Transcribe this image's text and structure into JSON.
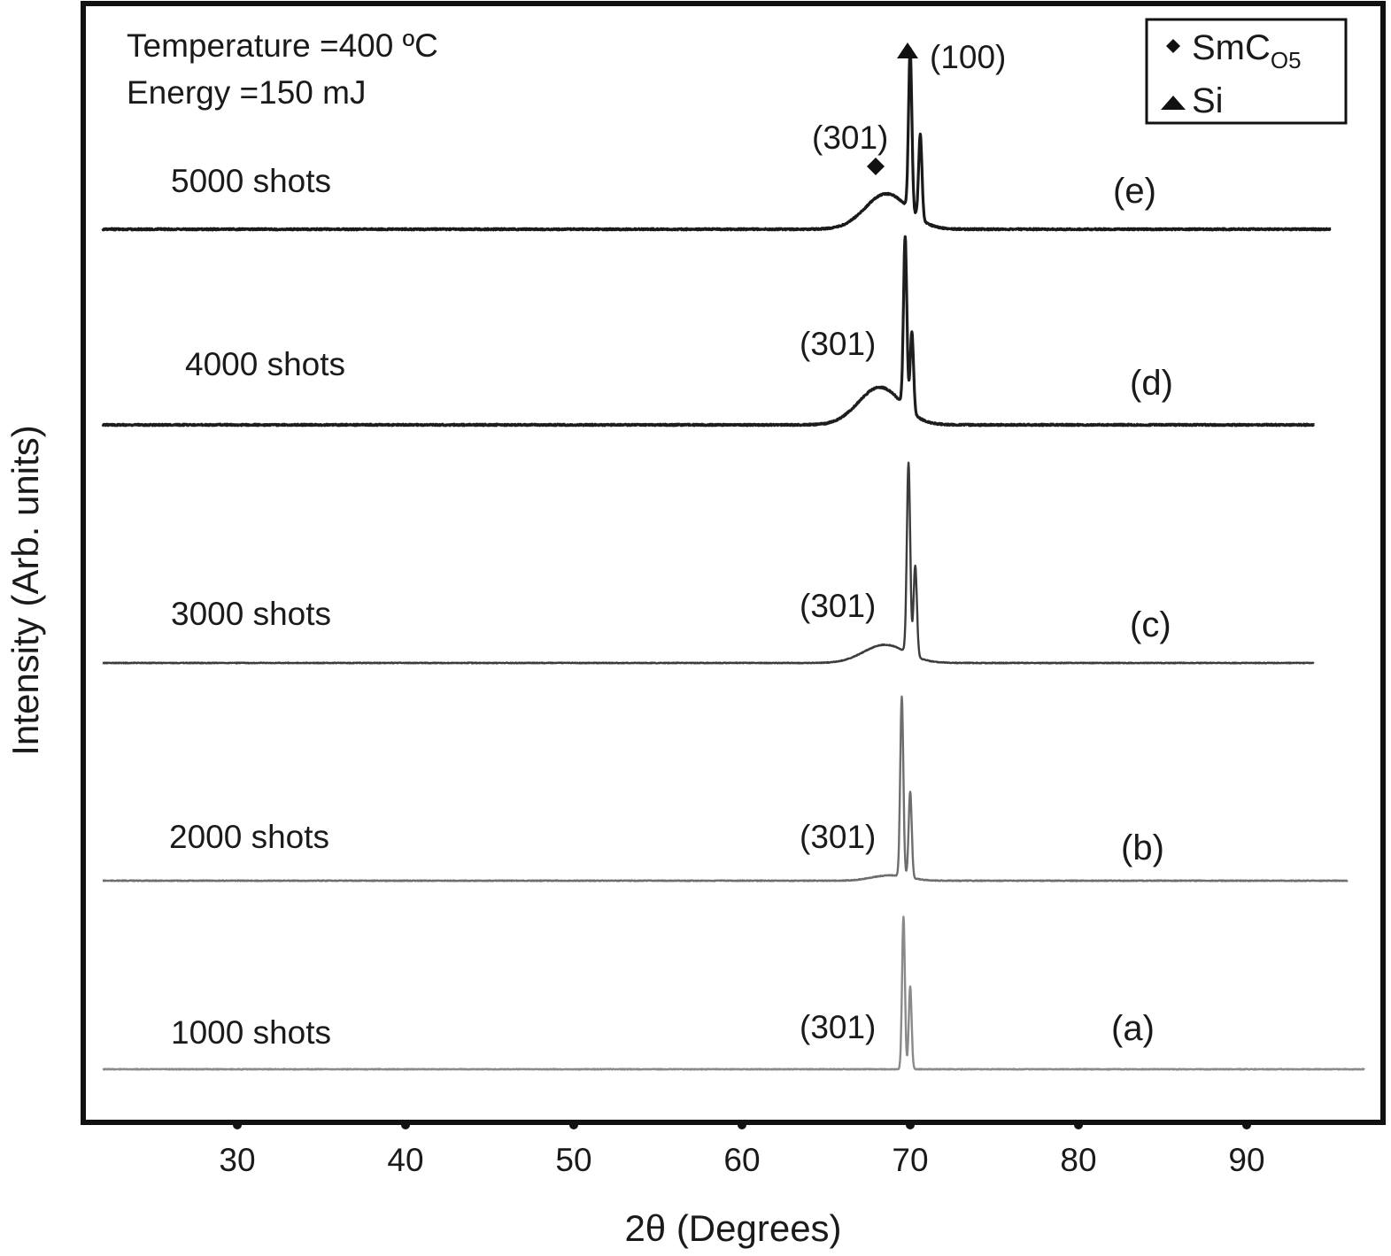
{
  "chart_data": {
    "type": "line",
    "xlabel": "2θ (Degrees)",
    "ylabel": "Intensity (Arb. units)",
    "xlim": [
      21,
      97
    ],
    "x_ticks": [
      "30",
      "40",
      "50",
      "60",
      "70",
      "80",
      "90"
    ],
    "grid": false,
    "y_ticks": [],
    "annotations": {
      "conditions_line1": "Temperature =400 ºC",
      "conditions_line2": "Energy =150 mJ",
      "peak_100": "(100)"
    },
    "legend": {
      "position": "top-right",
      "items": [
        {
          "marker": "diamond",
          "label": "SmC",
          "subscript": "O5"
        },
        {
          "marker": "triangle",
          "label": "Si",
          "subscript": ""
        }
      ]
    },
    "series": [
      {
        "name": "1000 shots",
        "tag": "(a)",
        "peak_label": "(301)",
        "x_range": [
          22,
          97
        ],
        "baseline": 0,
        "broad_hump": {
          "center": 68.5,
          "height": 0,
          "width": 2.0
        },
        "peaks": [
          {
            "center": 69.6,
            "height": 8.5,
            "width": 0.12
          },
          {
            "center": 70.0,
            "height": 4.6,
            "width": 0.12
          }
        ],
        "color": "#8a8a8a"
      },
      {
        "name": "2000 shots",
        "tag": "(b)",
        "peak_label": "(301)",
        "x_range": [
          22,
          96
        ],
        "baseline": 0,
        "broad_hump": {
          "center": 68.8,
          "height": 0.3,
          "width": 1.5
        },
        "peaks": [
          {
            "center": 69.5,
            "height": 10.0,
            "width": 0.13
          },
          {
            "center": 70.0,
            "height": 4.8,
            "width": 0.13
          }
        ],
        "color": "#6e6e6e"
      },
      {
        "name": "3000 shots",
        "tag": "(c)",
        "peak_label": "(301)",
        "x_range": [
          22,
          94
        ],
        "baseline": 0,
        "broad_hump": {
          "center": 68.5,
          "height": 1.0,
          "width": 1.8
        },
        "peaks": [
          {
            "center": 69.9,
            "height": 10.5,
            "width": 0.14
          },
          {
            "center": 70.3,
            "height": 5.0,
            "width": 0.14
          }
        ],
        "color": "#3c3c3c"
      },
      {
        "name": "4000 shots",
        "tag": "(d)",
        "peak_label": "(301)",
        "x_range": [
          22,
          94
        ],
        "baseline": 0,
        "broad_hump": {
          "center": 68.2,
          "height": 2.1,
          "width": 1.8
        },
        "peaks": [
          {
            "center": 69.7,
            "height": 9.5,
            "width": 0.14
          },
          {
            "center": 70.1,
            "height": 4.5,
            "width": 0.14
          }
        ],
        "color": "#1e1e1e"
      },
      {
        "name": "5000 shots",
        "tag": "(e)",
        "peak_label": "(301)",
        "x_range": [
          22,
          95
        ],
        "baseline": 0,
        "broad_hump": {
          "center": 68.6,
          "height": 2.1,
          "width": 1.8
        },
        "peaks": [
          {
            "center": 70.0,
            "height": 9.5,
            "width": 0.14
          },
          {
            "center": 70.6,
            "height": 5.0,
            "width": 0.14
          }
        ],
        "color": "#1a1a1a"
      }
    ]
  }
}
